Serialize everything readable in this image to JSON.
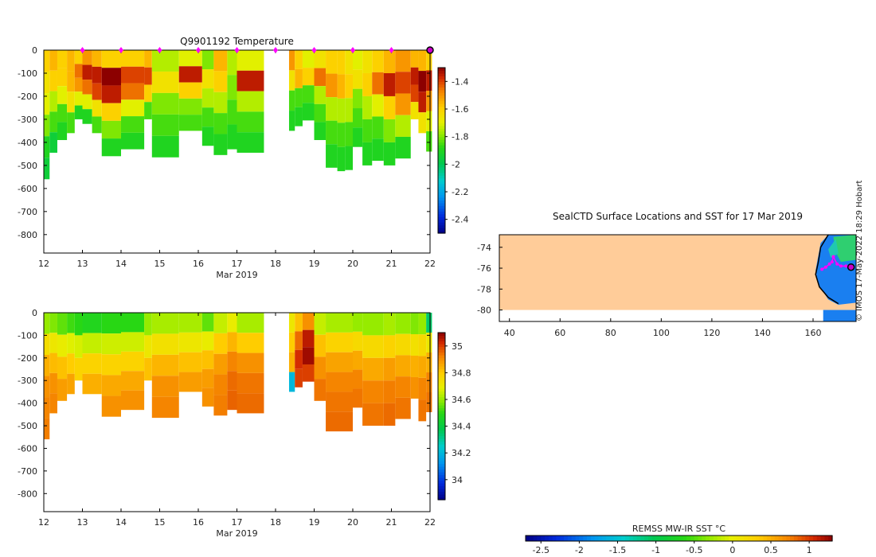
{
  "figure": {
    "stamp": "© IMOS 17-May-2022 18:29 Hobart"
  },
  "chart_data": [
    {
      "type": "heatmap",
      "title": "Q9901192  Temperature",
      "xlabel": "Mar 2019",
      "ylabel": "",
      "xlim": [
        12,
        22
      ],
      "ylim": [
        -880,
        0
      ],
      "x_ticks": [
        "12",
        "13",
        "14",
        "15",
        "16",
        "17",
        "18",
        "19",
        "20",
        "21",
        "22"
      ],
      "y_ticks": [
        "0",
        "-100",
        "-200",
        "-300",
        "-400",
        "-500",
        "-600",
        "-700",
        "-800"
      ],
      "colorbar": {
        "min": -2.5,
        "max": -1.3,
        "ticks": [
          "-1.4",
          "-1.6",
          "-1.8",
          "-2",
          "-2.2",
          "-2.4"
        ],
        "tick_values": [
          -1.4,
          -1.6,
          -1.8,
          -2.0,
          -2.2,
          -2.4
        ]
      },
      "surface_markers_day": [
        13,
        14,
        15,
        16,
        17,
        18,
        19,
        20,
        21
      ],
      "latest_profile_day": 22,
      "profiles": [
        {
          "t0": 12.0,
          "t1": 12.15,
          "depth": 560,
          "levels": [
            -1.6,
            -1.65,
            -1.7,
            -1.8,
            -1.9,
            -1.95
          ]
        },
        {
          "t0": 12.15,
          "t1": 12.35,
          "depth": 445,
          "levels": [
            -1.55,
            -1.6,
            -1.75,
            -1.85,
            -1.95
          ]
        },
        {
          "t0": 12.35,
          "t1": 12.6,
          "depth": 390,
          "levels": [
            -1.6,
            -1.6,
            -1.7,
            -1.85,
            -1.9
          ]
        },
        {
          "t0": 12.6,
          "t1": 12.8,
          "depth": 360,
          "levels": [
            -1.55,
            -1.55,
            -1.65,
            -1.85
          ]
        },
        {
          "t0": 12.8,
          "t1": 13.0,
          "depth": 300,
          "levels": [
            -1.6,
            -1.45,
            -1.5,
            -1.7,
            -1.9
          ]
        },
        {
          "t0": 13.0,
          "t1": 13.25,
          "depth": 320,
          "levels": [
            -1.5,
            -1.35,
            -1.45,
            -1.7,
            -1.9
          ]
        },
        {
          "t0": 13.25,
          "t1": 13.5,
          "depth": 360,
          "levels": [
            -1.55,
            -1.35,
            -1.4,
            -1.65,
            -1.85
          ]
        },
        {
          "t0": 13.5,
          "t1": 14.0,
          "depth": 460,
          "levels": [
            -1.6,
            -1.3,
            -1.35,
            -1.6,
            -1.8,
            -1.9
          ]
        },
        {
          "t0": 14.0,
          "t1": 14.6,
          "depth": 430,
          "levels": [
            -1.6,
            -1.4,
            -1.45,
            -1.7,
            -1.85,
            -1.9
          ]
        },
        {
          "t0": 14.6,
          "t1": 14.8,
          "depth": 300,
          "levels": [
            -1.55,
            -1.4,
            -1.6,
            -1.85
          ]
        },
        {
          "t0": 14.8,
          "t1": 15.5,
          "depth": 465,
          "levels": [
            -1.75,
            -1.65,
            -1.8,
            -1.85,
            -1.9
          ]
        },
        {
          "t0": 15.5,
          "t1": 16.1,
          "depth": 350,
          "levels": [
            -1.7,
            -1.35,
            -1.6,
            -1.8,
            -1.85
          ]
        },
        {
          "t0": 16.1,
          "t1": 16.4,
          "depth": 415,
          "levels": [
            -1.8,
            -1.65,
            -1.75,
            -1.85,
            -1.9
          ]
        },
        {
          "t0": 16.4,
          "t1": 16.75,
          "depth": 455,
          "levels": [
            -1.55,
            -1.6,
            -1.75,
            -1.85,
            -1.9
          ]
        },
        {
          "t0": 16.75,
          "t1": 17.0,
          "depth": 430,
          "levels": [
            -1.75,
            -1.8,
            -1.85,
            -1.9
          ]
        },
        {
          "t0": 17.0,
          "t1": 17.7,
          "depth": 445,
          "levels": [
            -1.7,
            -1.35,
            -1.75,
            -1.85,
            -1.9
          ]
        },
        {
          "t0": 18.35,
          "t1": 18.5,
          "depth": 350,
          "levels": [
            -1.5,
            -1.65,
            -1.85,
            -1.9
          ]
        },
        {
          "t0": 18.5,
          "t1": 18.7,
          "depth": 330,
          "levels": [
            -1.6,
            -1.55,
            -1.85,
            -1.9
          ]
        },
        {
          "t0": 18.7,
          "t1": 19.0,
          "depth": 305,
          "levels": [
            -1.7,
            -1.6,
            -1.85,
            -1.9
          ]
        },
        {
          "t0": 19.0,
          "t1": 19.3,
          "depth": 390,
          "levels": [
            -1.65,
            -1.45,
            -1.75,
            -1.85,
            -1.9
          ]
        },
        {
          "t0": 19.3,
          "t1": 19.6,
          "depth": 510,
          "levels": [
            -1.6,
            -1.5,
            -1.75,
            -1.85,
            -1.9
          ]
        },
        {
          "t0": 19.6,
          "t1": 19.8,
          "depth": 525,
          "levels": [
            -1.6,
            -1.55,
            -1.75,
            -1.85,
            -1.9
          ]
        },
        {
          "t0": 19.8,
          "t1": 20.0,
          "depth": 520,
          "levels": [
            -1.65,
            -1.6,
            -1.75,
            -1.85,
            -1.9
          ]
        },
        {
          "t0": 20.0,
          "t1": 20.25,
          "depth": 420,
          "levels": [
            -1.7,
            -1.65,
            -1.8,
            -1.85,
            -1.9
          ]
        },
        {
          "t0": 20.25,
          "t1": 20.5,
          "depth": 500,
          "levels": [
            -1.65,
            -1.6,
            -1.75,
            -1.85,
            -1.9
          ]
        },
        {
          "t0": 20.5,
          "t1": 20.8,
          "depth": 480,
          "levels": [
            -1.6,
            -1.45,
            -1.7,
            -1.85,
            -1.9
          ]
        },
        {
          "t0": 20.8,
          "t1": 21.1,
          "depth": 500,
          "levels": [
            -1.55,
            -1.35,
            -1.6,
            -1.8,
            -1.9
          ]
        },
        {
          "t0": 21.1,
          "t1": 21.5,
          "depth": 470,
          "levels": [
            -1.5,
            -1.4,
            -1.5,
            -1.75,
            -1.9
          ]
        },
        {
          "t0": 21.5,
          "t1": 21.7,
          "depth": 300,
          "levels": [
            -1.55,
            -1.35,
            -1.4,
            -1.65
          ]
        },
        {
          "t0": 21.7,
          "t1": 21.9,
          "depth": 360,
          "levels": [
            -1.55,
            -1.3,
            -1.35,
            -1.65
          ]
        },
        {
          "t0": 21.9,
          "t1": 22.05,
          "depth": 440,
          "levels": [
            -1.6,
            -1.35,
            -1.5,
            -1.7,
            -1.85
          ]
        }
      ]
    },
    {
      "type": "heatmap",
      "title": "",
      "xlabel": "Mar 2019",
      "ylabel": "",
      "xlim": [
        12,
        22
      ],
      "ylim": [
        -880,
        0
      ],
      "x_ticks": [
        "12",
        "13",
        "14",
        "15",
        "16",
        "17",
        "18",
        "19",
        "20",
        "21",
        "22"
      ],
      "y_ticks": [
        "0",
        "-100",
        "-200",
        "-300",
        "-400",
        "-500",
        "-600",
        "-700",
        "-800"
      ],
      "colorbar": {
        "min": 33.85,
        "max": 35.1,
        "ticks": [
          "35",
          "34.8",
          "34.6",
          "34.4",
          "34.2",
          "34"
        ],
        "tick_values": [
          35.0,
          34.8,
          34.6,
          34.4,
          34.2,
          34.0
        ]
      },
      "profiles": [
        {
          "t0": 12.0,
          "t1": 12.15,
          "depth": 560,
          "levels": [
            34.6,
            34.75,
            34.85,
            34.9,
            34.92,
            34.93
          ]
        },
        {
          "t0": 12.15,
          "t1": 12.35,
          "depth": 445,
          "levels": [
            34.58,
            34.72,
            34.83,
            34.9,
            34.92
          ]
        },
        {
          "t0": 12.35,
          "t1": 12.6,
          "depth": 390,
          "levels": [
            34.55,
            34.7,
            34.82,
            34.88
          ]
        },
        {
          "t0": 12.6,
          "t1": 12.8,
          "depth": 360,
          "levels": [
            34.52,
            34.68,
            34.8,
            34.87
          ]
        },
        {
          "t0": 12.8,
          "t1": 13.0,
          "depth": 300,
          "levels": [
            34.5,
            34.67,
            34.78
          ]
        },
        {
          "t0": 13.0,
          "t1": 13.5,
          "depth": 360,
          "levels": [
            34.48,
            34.65,
            34.78,
            34.85
          ]
        },
        {
          "t0": 13.5,
          "t1": 14.0,
          "depth": 460,
          "levels": [
            34.5,
            34.66,
            34.78,
            34.86,
            34.9
          ]
        },
        {
          "t0": 14.0,
          "t1": 14.6,
          "depth": 430,
          "levels": [
            34.5,
            34.66,
            34.78,
            34.86,
            34.9
          ]
        },
        {
          "t0": 14.6,
          "t1": 14.8,
          "depth": 300,
          "levels": [
            34.6,
            34.72,
            34.82
          ]
        },
        {
          "t0": 14.8,
          "t1": 15.5,
          "depth": 465,
          "levels": [
            34.62,
            34.74,
            34.84,
            34.9,
            34.92
          ]
        },
        {
          "t0": 15.5,
          "t1": 16.1,
          "depth": 350,
          "levels": [
            34.62,
            34.72,
            34.82,
            34.88
          ]
        },
        {
          "t0": 16.1,
          "t1": 16.4,
          "depth": 415,
          "levels": [
            34.55,
            34.7,
            34.82,
            34.88,
            34.9
          ]
        },
        {
          "t0": 16.4,
          "t1": 16.75,
          "depth": 455,
          "levels": [
            34.65,
            34.8,
            34.88,
            34.92,
            34.93
          ]
        },
        {
          "t0": 16.75,
          "t1": 17.0,
          "depth": 430,
          "levels": [
            34.7,
            34.84,
            34.92,
            34.95,
            34.96
          ]
        },
        {
          "t0": 17.0,
          "t1": 17.7,
          "depth": 445,
          "levels": [
            34.62,
            34.8,
            34.9,
            34.94,
            34.95
          ]
        },
        {
          "t0": 18.35,
          "t1": 18.5,
          "depth": 350,
          "levels": [
            34.72,
            34.8,
            34.85,
            34.2
          ]
        },
        {
          "t0": 18.5,
          "t1": 18.7,
          "depth": 330,
          "levels": [
            34.82,
            34.95,
            35.02,
            35.0
          ]
        },
        {
          "t0": 18.7,
          "t1": 19.0,
          "depth": 305,
          "levels": [
            34.9,
            35.05,
            35.08,
            35.0
          ]
        },
        {
          "t0": 19.0,
          "t1": 19.3,
          "depth": 390,
          "levels": [
            34.65,
            34.82,
            34.9,
            34.94
          ]
        },
        {
          "t0": 19.3,
          "t1": 20.0,
          "depth": 525,
          "levels": [
            34.62,
            34.78,
            34.87,
            34.92,
            34.94,
            34.95
          ]
        },
        {
          "t0": 20.0,
          "t1": 20.25,
          "depth": 420,
          "levels": [
            34.6,
            34.76,
            34.86,
            34.92,
            34.94
          ]
        },
        {
          "t0": 20.25,
          "t1": 20.8,
          "depth": 500,
          "levels": [
            34.6,
            34.76,
            34.86,
            34.92,
            34.94
          ]
        },
        {
          "t0": 20.8,
          "t1": 21.1,
          "depth": 500,
          "levels": [
            34.62,
            34.78,
            34.88,
            34.93,
            34.95
          ]
        },
        {
          "t0": 21.1,
          "t1": 21.5,
          "depth": 470,
          "levels": [
            34.6,
            34.76,
            34.86,
            34.92,
            34.94
          ]
        },
        {
          "t0": 21.5,
          "t1": 21.7,
          "depth": 380,
          "levels": [
            34.58,
            34.74,
            34.85,
            34.9
          ]
        },
        {
          "t0": 21.7,
          "t1": 21.9,
          "depth": 480,
          "levels": [
            34.6,
            34.76,
            34.86,
            34.92,
            34.94
          ]
        },
        {
          "t0": 21.9,
          "t1": 22.05,
          "depth": 440,
          "levels": [
            34.35,
            34.72,
            34.85,
            34.92,
            34.94
          ]
        }
      ]
    },
    {
      "type": "map",
      "title": "SealCTD Surface Locations and SST for 17 Mar 2019",
      "xlim": [
        36,
        177
      ],
      "ylim": [
        -81.1,
        -72.8
      ],
      "x_ticks": [
        "40",
        "60",
        "80",
        "100",
        "120",
        "140",
        "160"
      ],
      "x_tick_values": [
        40,
        60,
        80,
        100,
        120,
        140,
        160
      ],
      "y_ticks": [
        "-74",
        "-76",
        "-78",
        "-80"
      ],
      "y_tick_values": [
        -74,
        -76,
        -78,
        -80
      ],
      "land_below_lat": -80,
      "seal_track_lon": [
        163.5,
        165.0,
        166.5,
        167.5,
        168.0,
        169.5,
        171.0,
        173.0,
        175.0
      ],
      "seal_track_lat": [
        -76.1,
        -75.9,
        -75.6,
        -75.4,
        -74.9,
        -75.6,
        -75.8,
        -75.8,
        -75.9
      ],
      "latest_location": {
        "lon": 175.0,
        "lat": -75.9
      }
    },
    {
      "type": "colorbar",
      "title": "REMSS MW-IR SST °C",
      "range": [
        -2.7,
        1.3
      ],
      "ticks": [
        "-2.5",
        "-2",
        "-1.5",
        "-1",
        "-0.5",
        "0",
        "0.5",
        "1"
      ],
      "tick_values": [
        -2.5,
        -2.0,
        -1.5,
        -1.0,
        -0.5,
        0.0,
        0.5,
        1.0
      ]
    }
  ]
}
